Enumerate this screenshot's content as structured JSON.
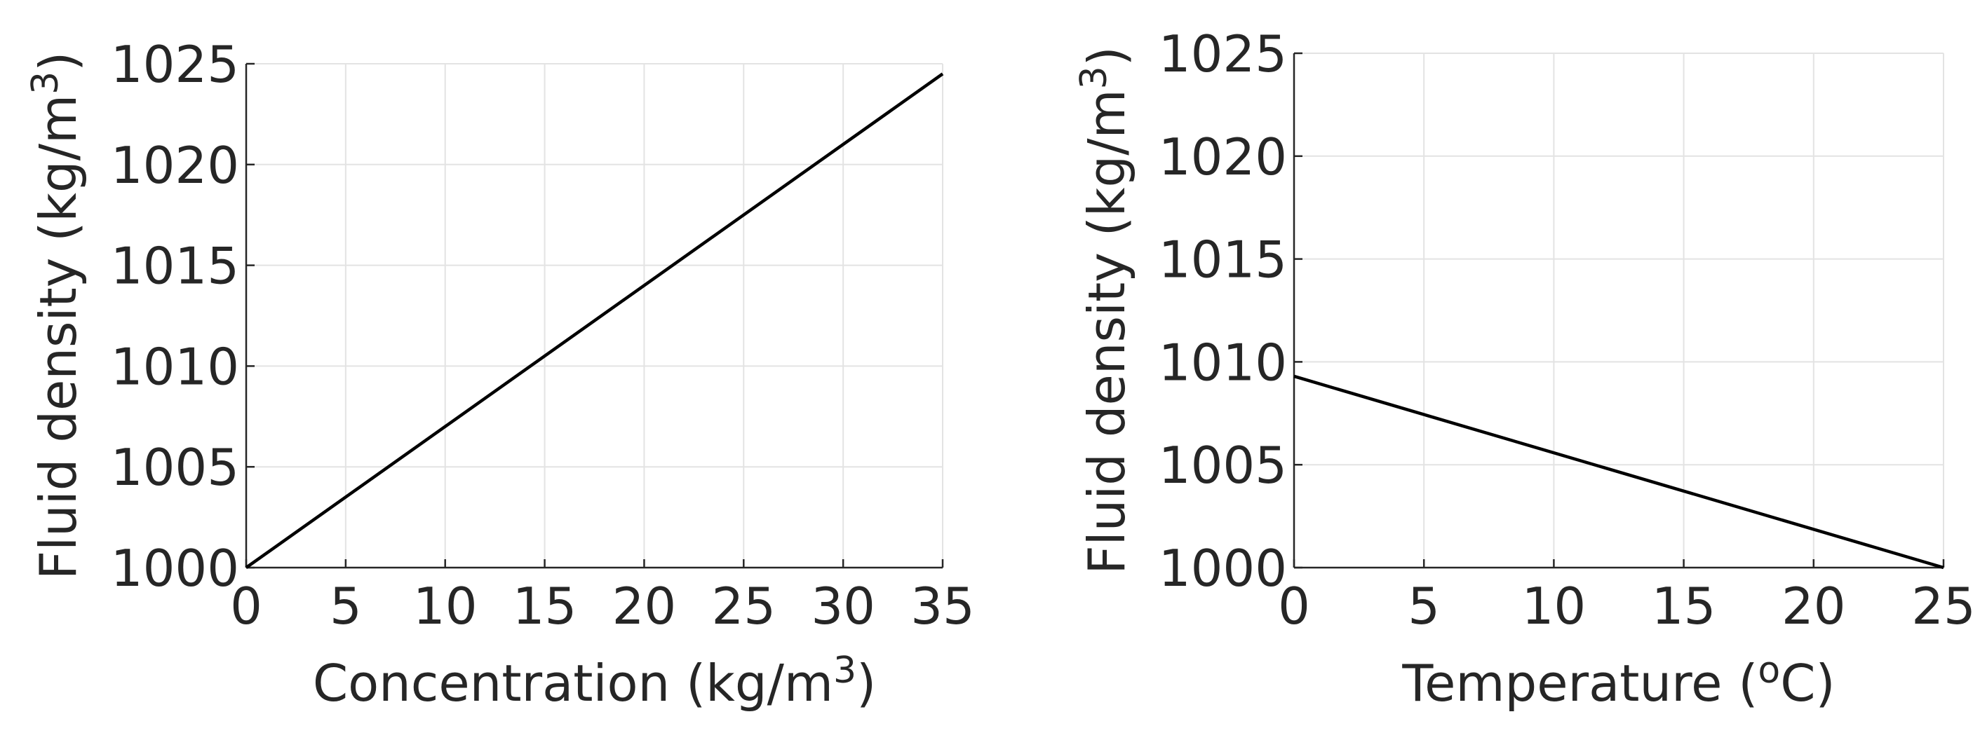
{
  "colors": {
    "series": "#000000",
    "axis": "#262626",
    "grid": "#e3e3e3"
  },
  "chart_data": [
    {
      "type": "line",
      "grid": true,
      "xlabel": {
        "prefix": "Concentration (kg/m",
        "sup": "3",
        "suffix": ")"
      },
      "ylabel": {
        "prefix": "Fluid density (kg/m",
        "sup": "3",
        "suffix": ")"
      },
      "xlim": [
        0,
        35
      ],
      "ylim": [
        1000,
        1025
      ],
      "xticks": [
        0,
        5,
        10,
        15,
        20,
        25,
        30,
        35
      ],
      "yticks": [
        1000,
        1005,
        1010,
        1015,
        1020,
        1025
      ],
      "series": [
        {
          "x": [
            0,
            35
          ],
          "y": [
            1000,
            1024.5
          ]
        }
      ]
    },
    {
      "type": "line",
      "grid": true,
      "xlabel": {
        "prefix": "Temperature (",
        "sup": "o",
        "suffix": "C)"
      },
      "ylabel": {
        "prefix": "Fluid density (kg/m",
        "sup": "3",
        "suffix": ")"
      },
      "xlim": [
        0,
        25
      ],
      "ylim": [
        1000,
        1025
      ],
      "xticks": [
        0,
        5,
        10,
        15,
        20,
        25
      ],
      "yticks": [
        1000,
        1005,
        1010,
        1015,
        1020,
        1025
      ],
      "series": [
        {
          "x": [
            0,
            25
          ],
          "y": [
            1009.3,
            1000
          ]
        }
      ]
    }
  ]
}
